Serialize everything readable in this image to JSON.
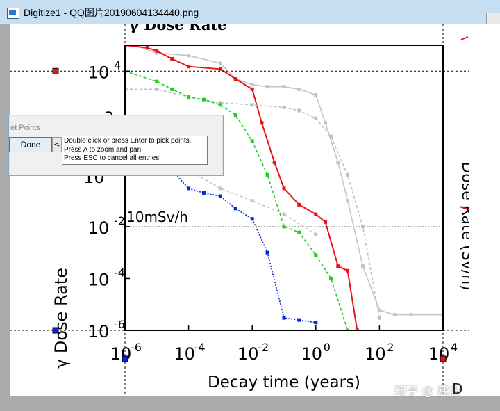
{
  "window": {
    "title": "Digitize1 - QQ图片20190604134440.png"
  },
  "dialog": {
    "title": "et Points",
    "done_label": "Done",
    "collapse_label": "<",
    "help_lines": [
      "Double click or press Enter to pick points.",
      "Press A to zoom and pan.",
      "Press ESC to cancel all entries."
    ]
  },
  "image_text": {
    "top_title": "γ Dose Rate",
    "threshold_label": "10mSv/h",
    "right_axis_label": "γ Dose Rate (Sv/h)",
    "right_axis_label_partial": "Dose Rate (Sv/h)",
    "y_tick_partial_1": "3",
    "y_tick_partial_2": "10"
  },
  "watermark": {
    "text": "知乎 @ 建君",
    "logo_char": "D"
  },
  "colors": {
    "red": "#e8141b",
    "green": "#1fcc1f",
    "blue": "#0a23d8",
    "gray": "#c4c4c4",
    "gray_dashed": "#bfbfbf"
  },
  "chart_data": {
    "type": "line",
    "title": "",
    "xlabel": "Decay time (years)",
    "ylabel": "γ Dose Rate",
    "xscale": "log",
    "yscale": "log",
    "xlim": [
      1e-06,
      10000
    ],
    "ylim": [
      1e-06,
      100000
    ],
    "x_ticks": [
      1e-06,
      0.0001,
      0.01,
      1,
      100,
      10000
    ],
    "y_ticks": [
      1e-06,
      0.0001,
      0.01,
      10000
    ],
    "x_tick_labels": [
      {
        "base": "10",
        "exp": "-6"
      },
      {
        "base": "10",
        "exp": "-4"
      },
      {
        "base": "10",
        "exp": "-2"
      },
      {
        "base": "10",
        "exp": "0"
      },
      {
        "base": "10",
        "exp": "2"
      },
      {
        "base": "10",
        "exp": "4"
      }
    ],
    "y_tick_labels": [
      {
        "base": "10",
        "exp": "-6"
      },
      {
        "base": "10",
        "exp": "-4"
      },
      {
        "base": "10",
        "exp": "-2"
      },
      {
        "base": "10",
        "exp": "4"
      }
    ],
    "threshold": 0.01,
    "series": [
      {
        "color": "#c4c4c4",
        "dash": "",
        "x": [
          1e-06,
          2e-06,
          1e-05,
          0.0001,
          0.001,
          0.003,
          0.01,
          0.03,
          0.1,
          0.3,
          1,
          2,
          5,
          10,
          30,
          100,
          300,
          1000,
          10000
        ],
        "y": [
          100000,
          100000,
          50000,
          40000,
          20000,
          5000,
          3000,
          2500,
          2500,
          2000,
          1200,
          100,
          3,
          0.1,
          0.0003,
          6e-06,
          4e-06,
          4e-06,
          4e-06
        ]
      },
      {
        "color": "#e8141b",
        "dash": "",
        "x": [
          1e-06,
          5e-06,
          1e-05,
          3e-05,
          0.0001,
          0.001,
          0.003,
          0.01,
          0.02,
          0.05,
          0.1,
          0.3,
          1,
          2,
          5,
          10,
          20
        ],
        "y": [
          100000,
          80000,
          60000,
          30000,
          15000,
          12000,
          5000,
          2000,
          100,
          3,
          0.3,
          0.07,
          0.03,
          0.015,
          0.0003,
          0.0002,
          1e-06
        ]
      },
      {
        "color": "#bfbfbf",
        "dash": "4,3",
        "x": [
          1e-06,
          1e-05,
          0.0001,
          0.001,
          0.01,
          0.1,
          0.3,
          1,
          3,
          10,
          30,
          100
        ],
        "y": [
          2000,
          2000,
          1000,
          600,
          500,
          400,
          300,
          150,
          30,
          1,
          0.01,
          3e-06
        ]
      },
      {
        "color": "#1fcc1f",
        "dash": "4,3",
        "x": [
          1e-06,
          1e-05,
          3e-05,
          0.0001,
          0.0003,
          0.001,
          0.003,
          0.01,
          0.03,
          0.1,
          0.3,
          1,
          3,
          10
        ],
        "y": [
          10000,
          4000,
          2000,
          1000,
          800,
          500,
          200,
          20,
          1,
          0.01,
          0.006,
          0.0008,
          0.0001,
          1e-06
        ]
      },
      {
        "color": "#c4c4c4",
        "dash": "4,3",
        "x": [
          1e-06,
          1e-05,
          0.0001,
          0.001,
          0.01,
          0.1,
          1
        ],
        "y": [
          2,
          2,
          1.5,
          0.3,
          0.1,
          0.03,
          0.005
        ]
      },
      {
        "color": "#0a23d8",
        "dash": "2,2",
        "x": [
          1e-06,
          1e-05,
          3e-05,
          0.0001,
          0.0003,
          0.001,
          0.003,
          0.01,
          0.03,
          0.1,
          0.3,
          1
        ],
        "y": [
          3,
          2,
          1.5,
          0.3,
          0.2,
          0.15,
          0.05,
          0.02,
          0.001,
          3e-06,
          2.5e-06,
          2e-06
        ]
      }
    ]
  }
}
